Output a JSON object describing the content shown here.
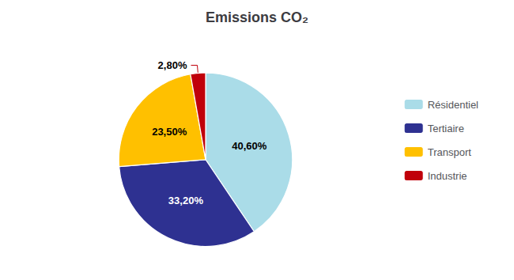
{
  "chart_data": {
    "type": "pie",
    "title": "Emissions CO₂",
    "categories": [
      "Résidentiel",
      "Tertiaire",
      "Transport",
      "Industrie"
    ],
    "values": [
      40.6,
      33.2,
      23.5,
      2.8
    ],
    "value_labels": [
      "40,60%",
      "33,20%",
      "23,50%",
      "2,80%"
    ],
    "colors": [
      "#aadce8",
      "#2e3191",
      "#ffc000",
      "#c0000a"
    ],
    "data_labels": true,
    "legend": "right"
  }
}
